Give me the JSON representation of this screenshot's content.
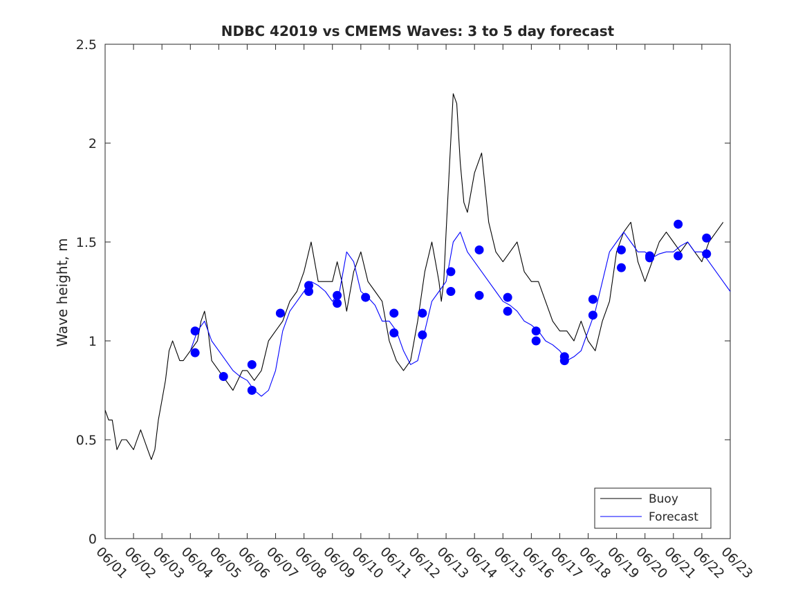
{
  "chart_data": {
    "type": "line",
    "title": "NDBC 42019 vs CMEMS Waves: 3 to 5 day forecast",
    "xlabel": "",
    "ylabel": "Wave height, m",
    "xlim": [
      "06/01",
      "06/23"
    ],
    "ylim": [
      0,
      2.5
    ],
    "x_ticks": [
      "06/01",
      "06/02",
      "06/03",
      "06/04",
      "06/05",
      "06/06",
      "06/07",
      "06/08",
      "06/09",
      "06/10",
      "06/11",
      "06/12",
      "06/13",
      "06/14",
      "06/15",
      "06/16",
      "06/17",
      "06/18",
      "06/19",
      "06/20",
      "06/21",
      "06/22",
      "06/23"
    ],
    "y_ticks": [
      0,
      0.5,
      1,
      1.5,
      2,
      2.5
    ],
    "y_tick_labels": [
      "0",
      "0.5",
      "1",
      "1.5",
      "2",
      "2.5"
    ],
    "grid": false,
    "legend_position": "bottom-right",
    "legend": [
      {
        "label": "Buoy",
        "color": "#000000"
      },
      {
        "label": "Forecast",
        "color": "#0000ff"
      }
    ],
    "series": [
      {
        "name": "Buoy",
        "color": "#000000",
        "x": [
          "06/01 00:00",
          "06/01 03:00",
          "06/01 06:00",
          "06/01 10:00",
          "06/01 14:00",
          "06/01 18:00",
          "06/02 00:00",
          "06/02 03:00",
          "06/02 06:00",
          "06/02 09:00",
          "06/02 12:00",
          "06/02 15:00",
          "06/02 18:00",
          "06/02 21:00",
          "06/03 00:00",
          "06/03 03:00",
          "06/03 06:00",
          "06/03 09:00",
          "06/03 12:00",
          "06/03 15:00",
          "06/03 18:00",
          "06/04 00:00",
          "06/04 06:00",
          "06/04 09:00",
          "06/04 12:00",
          "06/04 15:00",
          "06/04 18:00",
          "06/05 00:00",
          "06/05 06:00",
          "06/05 12:00",
          "06/05 16:00",
          "06/05 20:00",
          "06/06 00:00",
          "06/06 06:00",
          "06/06 12:00",
          "06/06 18:00",
          "06/07 00:00",
          "06/07 06:00",
          "06/07 12:00",
          "06/07 18:00",
          "06/07 21:00",
          "06/08 00:00",
          "06/08 06:00",
          "06/08 12:00",
          "06/08 18:00",
          "06/09 00:00",
          "06/09 04:00",
          "06/09 08:00",
          "06/09 12:00",
          "06/09 18:00",
          "06/10 00:00",
          "06/10 06:00",
          "06/10 12:00",
          "06/10 18:00",
          "06/11 00:00",
          "06/11 06:00",
          "06/11 12:00",
          "06/11 18:00",
          "06/12 00:00",
          "06/12 06:00",
          "06/12 12:00",
          "06/12 15:00",
          "06/12 18:00",
          "06/12 20:00",
          "06/12 22:00",
          "06/13 00:00",
          "06/13 03:00",
          "06/13 06:00",
          "06/13 09:00",
          "06/13 12:00",
          "06/13 15:00",
          "06/13 18:00",
          "06/14 00:00",
          "06/14 06:00",
          "06/14 12:00",
          "06/14 18:00",
          "06/15 00:00",
          "06/15 06:00",
          "06/15 12:00",
          "06/15 18:00",
          "06/16 00:00",
          "06/16 06:00",
          "06/16 12:00",
          "06/16 18:00",
          "06/17 00:00",
          "06/17 06:00",
          "06/17 12:00",
          "06/17 18:00",
          "06/18 00:00",
          "06/18 06:00",
          "06/18 12:00",
          "06/18 18:00",
          "06/19 00:00",
          "06/19 06:00",
          "06/19 12:00",
          "06/19 18:00",
          "06/20 00:00",
          "06/20 06:00",
          "06/20 12:00",
          "06/20 18:00",
          "06/21 00:00",
          "06/21 06:00",
          "06/21 12:00",
          "06/21 18:00",
          "06/22 00:00",
          "06/22 06:00",
          "06/22 12:00",
          "06/22 18:00"
        ],
        "values": [
          0.65,
          0.6,
          0.6,
          0.45,
          0.5,
          0.5,
          0.45,
          0.5,
          0.55,
          0.5,
          0.45,
          0.4,
          0.45,
          0.6,
          0.7,
          0.8,
          0.95,
          1.0,
          0.95,
          0.9,
          0.9,
          0.95,
          1.0,
          1.1,
          1.15,
          1.05,
          0.9,
          0.85,
          0.8,
          0.75,
          0.8,
          0.85,
          0.85,
          0.8,
          0.85,
          1.0,
          1.05,
          1.1,
          1.2,
          1.25,
          1.3,
          1.35,
          1.5,
          1.3,
          1.3,
          1.3,
          1.4,
          1.3,
          1.15,
          1.35,
          1.45,
          1.3,
          1.25,
          1.2,
          1.0,
          0.9,
          0.85,
          0.9,
          1.1,
          1.35,
          1.5,
          1.4,
          1.3,
          1.2,
          1.3,
          1.55,
          1.9,
          2.25,
          2.2,
          1.9,
          1.7,
          1.65,
          1.85,
          1.95,
          1.6,
          1.45,
          1.4,
          1.45,
          1.5,
          1.35,
          1.3,
          1.3,
          1.2,
          1.1,
          1.05,
          1.05,
          1.0,
          1.1,
          1.0,
          0.95,
          1.1,
          1.2,
          1.45,
          1.55,
          1.6,
          1.4,
          1.3,
          1.4,
          1.5,
          1.55,
          1.5,
          1.45,
          1.5,
          1.45,
          1.4,
          1.5,
          1.55,
          1.6
        ]
      },
      {
        "name": "Forecast",
        "color": "#0000ff",
        "x": [
          "06/04 00:00",
          "06/04 06:00",
          "06/04 12:00",
          "06/04 18:00",
          "06/05 00:00",
          "06/05 06:00",
          "06/05 12:00",
          "06/05 18:00",
          "06/06 00:00",
          "06/06 06:00",
          "06/06 12:00",
          "06/06 18:00",
          "06/07 00:00",
          "06/07 06:00",
          "06/07 12:00",
          "06/07 18:00",
          "06/08 00:00",
          "06/08 06:00",
          "06/08 12:00",
          "06/08 18:00",
          "06/09 00:00",
          "06/09 06:00",
          "06/09 12:00",
          "06/09 18:00",
          "06/10 00:00",
          "06/10 06:00",
          "06/10 12:00",
          "06/10 18:00",
          "06/11 00:00",
          "06/11 06:00",
          "06/11 12:00",
          "06/11 18:00",
          "06/12 00:00",
          "06/12 06:00",
          "06/12 12:00",
          "06/12 18:00",
          "06/13 00:00",
          "06/13 06:00",
          "06/13 12:00",
          "06/13 18:00",
          "06/14 00:00",
          "06/14 06:00",
          "06/14 12:00",
          "06/14 18:00",
          "06/15 00:00",
          "06/15 06:00",
          "06/15 12:00",
          "06/15 18:00",
          "06/16 00:00",
          "06/16 06:00",
          "06/16 12:00",
          "06/16 18:00",
          "06/17 00:00",
          "06/17 06:00",
          "06/17 12:00",
          "06/17 18:00",
          "06/18 00:00",
          "06/18 06:00",
          "06/18 12:00",
          "06/18 18:00",
          "06/19 00:00",
          "06/19 06:00",
          "06/19 12:00",
          "06/19 18:00",
          "06/20 00:00",
          "06/20 06:00",
          "06/20 12:00",
          "06/20 18:00",
          "06/21 00:00",
          "06/21 06:00",
          "06/21 12:00",
          "06/21 18:00",
          "06/22 00:00",
          "06/22 06:00",
          "06/22 12:00",
          "06/22 18:00",
          "06/23 00:00"
        ],
        "values": [
          0.95,
          1.05,
          1.1,
          1.0,
          0.95,
          0.9,
          0.85,
          0.82,
          0.8,
          0.75,
          0.72,
          0.75,
          0.85,
          1.05,
          1.15,
          1.2,
          1.25,
          1.3,
          1.28,
          1.25,
          1.2,
          1.25,
          1.45,
          1.4,
          1.25,
          1.22,
          1.18,
          1.1,
          1.1,
          1.05,
          0.95,
          0.88,
          0.9,
          1.05,
          1.2,
          1.25,
          1.3,
          1.5,
          1.55,
          1.45,
          1.4,
          1.35,
          1.3,
          1.25,
          1.2,
          1.18,
          1.15,
          1.1,
          1.08,
          1.05,
          1.0,
          0.98,
          0.95,
          0.9,
          0.92,
          0.95,
          1.05,
          1.15,
          1.3,
          1.45,
          1.5,
          1.55,
          1.5,
          1.45,
          1.45,
          1.42,
          1.44,
          1.45,
          1.45,
          1.48,
          1.5,
          1.45,
          1.45,
          1.4,
          1.35,
          1.3,
          1.25
        ]
      }
    ],
    "forecast_points": {
      "x": [
        "06/04 04:00",
        "06/04 04:00",
        "06/05 04:00",
        "06/06 04:00",
        "06/06 04:00",
        "06/07 04:00",
        "06/08 04:00",
        "06/08 04:00",
        "06/09 04:00",
        "06/09 04:00",
        "06/10 04:00",
        "06/11 04:00",
        "06/11 04:00",
        "06/12 04:00",
        "06/12 04:00",
        "06/13 04:00",
        "06/13 04:00",
        "06/14 04:00",
        "06/14 04:00",
        "06/15 04:00",
        "06/15 04:00",
        "06/16 04:00",
        "06/16 04:00",
        "06/17 04:00",
        "06/17 04:00",
        "06/18 04:00",
        "06/18 04:00",
        "06/19 04:00",
        "06/19 04:00",
        "06/20 04:00",
        "06/20 04:00",
        "06/21 04:00",
        "06/21 04:00",
        "06/22 04:00",
        "06/22 04:00"
      ],
      "values": [
        1.05,
        0.94,
        0.82,
        0.88,
        0.75,
        1.14,
        1.28,
        1.25,
        1.23,
        1.19,
        1.22,
        1.14,
        1.04,
        1.14,
        1.03,
        1.35,
        1.25,
        1.46,
        1.23,
        1.22,
        1.15,
        1.05,
        1.0,
        0.92,
        0.9,
        1.21,
        1.13,
        1.46,
        1.37,
        1.43,
        1.42,
        1.59,
        1.43,
        1.52,
        1.44
      ]
    }
  }
}
